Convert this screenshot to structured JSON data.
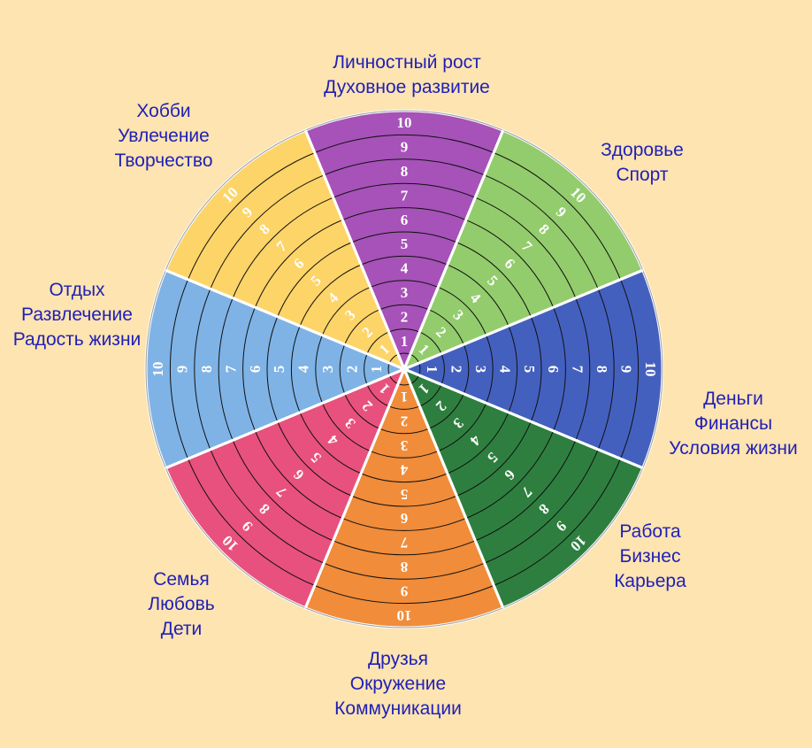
{
  "scale": [
    "1",
    "2",
    "3",
    "4",
    "5",
    "6",
    "7",
    "8",
    "9",
    "10"
  ],
  "spheres": [
    {
      "key": "growth",
      "color": "#a652b8",
      "lines": [
        "Личностный рост",
        "Духовное развитие"
      ]
    },
    {
      "key": "health",
      "color": "#93cc6c",
      "lines": [
        "Здоровье",
        "Спорт"
      ]
    },
    {
      "key": "money",
      "color": "#4460bf",
      "lines": [
        "Деньги",
        "Финансы",
        "Условия жизни"
      ]
    },
    {
      "key": "work",
      "color": "#2e7f3f",
      "lines": [
        "Работа",
        "Бизнес",
        "Карьера"
      ]
    },
    {
      "key": "friends",
      "color": "#f08c3a",
      "lines": [
        "Друзья",
        "Окружение",
        "Коммуникации"
      ]
    },
    {
      "key": "family",
      "color": "#e8517d",
      "lines": [
        "Семья",
        "Любовь",
        "Дети"
      ]
    },
    {
      "key": "rest",
      "color": "#7fb3e6",
      "lines": [
        "Отдых",
        "Развлечение",
        "Радость жизни"
      ]
    },
    {
      "key": "hobby",
      "color": "#fdd468",
      "lines": [
        "Хобби",
        "Увлечение",
        "Творчество"
      ]
    }
  ]
}
